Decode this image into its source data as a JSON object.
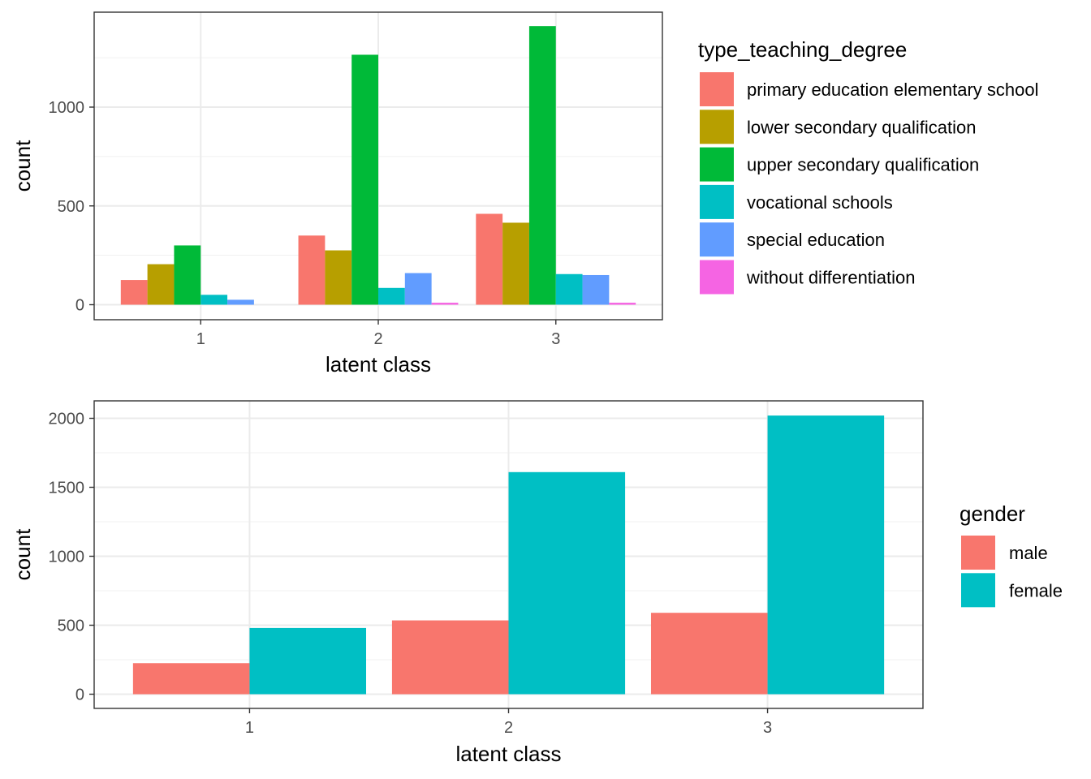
{
  "chart_data": [
    {
      "type": "bar",
      "xlabel": "latent class",
      "ylabel": "count",
      "categories": [
        "1",
        "2",
        "3"
      ],
      "ylim": [
        0,
        1420
      ],
      "yticks": [
        0,
        500,
        1000
      ],
      "grid": true,
      "legend_position": "right",
      "legend_title": "type_teaching_degree",
      "series": [
        {
          "name": "primary education elementary school",
          "color": "#F8766D",
          "values": [
            125,
            350,
            460
          ]
        },
        {
          "name": "lower secondary qualification",
          "color": "#B79F00",
          "values": [
            205,
            275,
            415
          ]
        },
        {
          "name": "upper secondary qualification",
          "color": "#00BA38",
          "values": [
            300,
            1265,
            1410
          ]
        },
        {
          "name": "vocational schools",
          "color": "#00BFC4",
          "values": [
            50,
            85,
            155
          ]
        },
        {
          "name": "special education",
          "color": "#619CFF",
          "values": [
            25,
            160,
            150
          ]
        },
        {
          "name": "without differentiation",
          "color": "#F564E3",
          "values": [
            0,
            10,
            10
          ]
        }
      ]
    },
    {
      "type": "bar",
      "xlabel": "latent class",
      "ylabel": "count",
      "categories": [
        "1",
        "2",
        "3"
      ],
      "ylim": [
        0,
        2020
      ],
      "yticks": [
        0,
        500,
        1000,
        1500,
        2000
      ],
      "grid": true,
      "legend_position": "right",
      "legend_title": "gender",
      "series": [
        {
          "name": "male",
          "color": "#F8766D",
          "values": [
            225,
            535,
            590
          ]
        },
        {
          "name": "female",
          "color": "#00BFC4",
          "values": [
            480,
            1610,
            2020
          ]
        }
      ]
    }
  ]
}
